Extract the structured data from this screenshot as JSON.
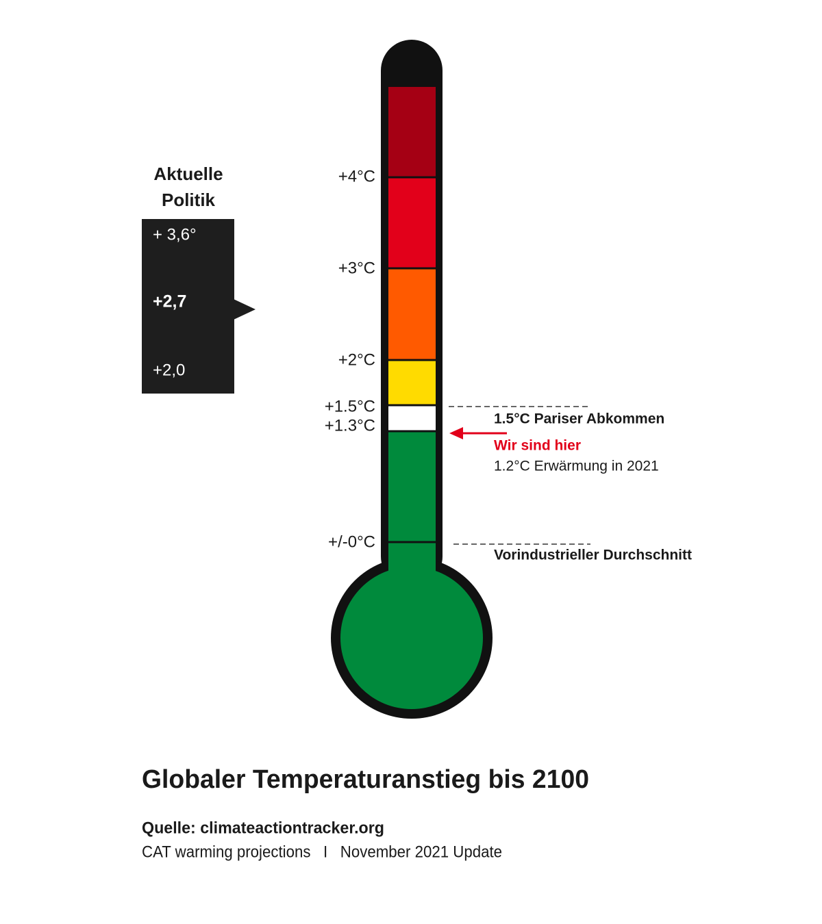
{
  "scale": {
    "labels": [
      "+4°C",
      "+3°C",
      "+2°C",
      "+1.5°C",
      "+1.3°C",
      "+/-0°C"
    ]
  },
  "policy": {
    "title_lines": [
      "Aktuelle",
      "Politik"
    ],
    "values": [
      "+ 3,6°",
      "+2,7",
      "+2,0"
    ]
  },
  "annotations": {
    "paris": "1.5°C Pariser Abkommen",
    "here": "Wir sind hier",
    "warming": "1.2°C Erwärmung in 2021",
    "preindustrial": "Vorindustrieller Durchschnitt"
  },
  "footer": {
    "title": "Globaler Temperaturanstieg bis 2100",
    "source": "Quelle: climateactiontracker.org",
    "note": "CAT warming projections   I   November 2021 Update"
  }
}
